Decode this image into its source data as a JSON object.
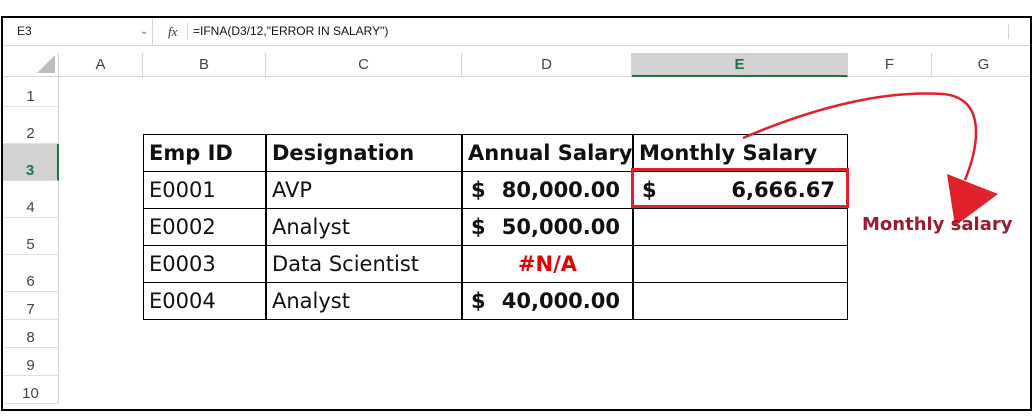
{
  "formula_bar": {
    "name_box": "E3",
    "fx_label": "fx",
    "formula": "=IFNA(D3/12,\"ERROR IN SALARY\")"
  },
  "columns": [
    "A",
    "B",
    "C",
    "D",
    "E",
    "F",
    "G"
  ],
  "selected_column": "E",
  "rows": [
    "1",
    "2",
    "3",
    "4",
    "5",
    "6",
    "7",
    "8",
    "9",
    "10"
  ],
  "selected_row": "3",
  "table": {
    "headers": {
      "emp_id": "Emp ID",
      "designation": "Designation",
      "annual_salary": "Annual Salary",
      "monthly_salary": "Monthly Salary"
    },
    "currency_symbol": "$",
    "records": [
      {
        "emp_id": "E0001",
        "designation": "AVP",
        "annual_salary": "80,000.00",
        "monthly_salary": "6,666.67"
      },
      {
        "emp_id": "E0002",
        "designation": "Analyst",
        "annual_salary": "50,000.00",
        "monthly_salary": ""
      },
      {
        "emp_id": "E0003",
        "designation": "Data Scientist",
        "annual_salary_error": "#N/A",
        "monthly_salary": ""
      },
      {
        "emp_id": "E0004",
        "designation": "Analyst",
        "annual_salary": "40,000.00",
        "monthly_salary": ""
      }
    ]
  },
  "annotation": {
    "label": "Monthly salary",
    "color": "#9b1c30",
    "arrow_color": "#e0202a"
  }
}
